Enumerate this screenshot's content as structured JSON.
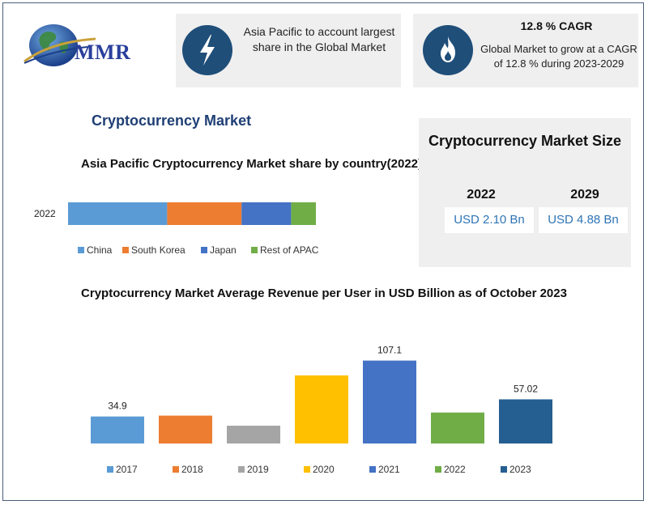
{
  "logo": {
    "text": "MMR"
  },
  "card_share": {
    "text": "Asia Pacific to account largest share in the Global Market",
    "icon": "lightning-icon"
  },
  "card_cagr": {
    "title": "12.8 % CAGR",
    "text": "Global Market to grow at a CAGR of 12.8 % during 2023-2029",
    "icon": "flame-icon"
  },
  "section_title": "Cryptocurrency Market",
  "market_size": {
    "title": "Cryptocurrency Market Size",
    "items": [
      {
        "year": "2022",
        "value": "USD 2.10 Bn"
      },
      {
        "year": "2029",
        "value": "USD 4.88 Bn"
      }
    ]
  },
  "colors": {
    "accent": "#1f4e79",
    "card_bg": "#efefef",
    "value_text": "#2e74b5"
  },
  "chart_data": [
    {
      "type": "bar",
      "orientation": "horizontal",
      "stacked": true,
      "title": "Asia Pacific Cryptocurrency Market share by country(2022)",
      "categories": [
        "2022"
      ],
      "series": [
        {
          "name": "China",
          "values": [
            40
          ],
          "color": "#5b9bd5"
        },
        {
          "name": "South Korea",
          "values": [
            30
          ],
          "color": "#ed7d31"
        },
        {
          "name": "Japan",
          "values": [
            20
          ],
          "color": "#4472c4"
        },
        {
          "name": "Rest of APAC",
          "values": [
            10
          ],
          "color": "#70ad47"
        }
      ],
      "legend": "bottom"
    },
    {
      "type": "bar",
      "title": "Cryptocurrency Market Average Revenue per User in USD Billion as of October 2023",
      "categories": [
        "2017",
        "2018",
        "2019",
        "2020",
        "2021",
        "2022",
        "2023"
      ],
      "values": [
        34.9,
        36,
        23,
        88,
        107.1,
        40,
        57.02
      ],
      "data_labels": [
        "34.9",
        "",
        "",
        "",
        "107.1",
        "",
        "57.02"
      ],
      "colors": [
        "#5b9bd5",
        "#ed7d31",
        "#a5a5a5",
        "#ffc000",
        "#4472c4",
        "#70ad47",
        "#255e91"
      ],
      "ylim": [
        0,
        115
      ],
      "legend": "bottom",
      "grid": false
    }
  ]
}
